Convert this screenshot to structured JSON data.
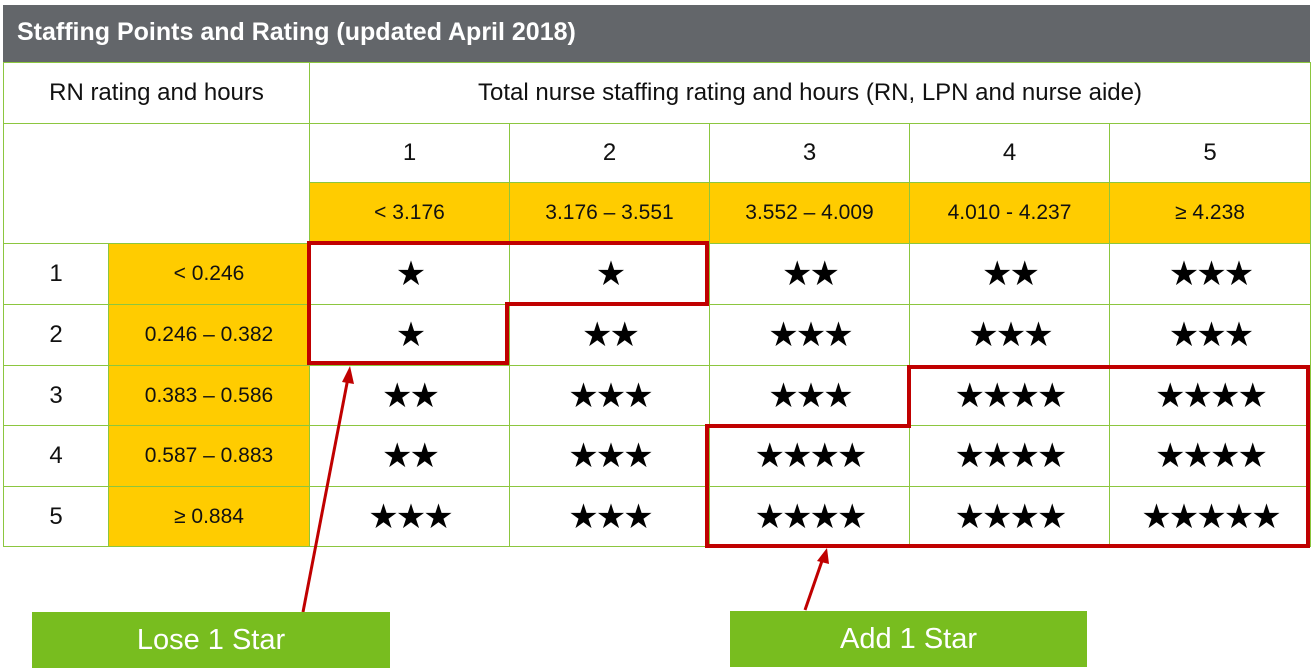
{
  "title": "Staffing Points and Rating (updated April 2018)",
  "rn_header": "RN rating and hours",
  "total_header": "Total nurse staffing rating and hours (RN, LPN and nurse aide)",
  "total_ratings": [
    "1",
    "2",
    "3",
    "4",
    "5"
  ],
  "total_ranges": [
    "< 3.176",
    "3.176 – 3.551",
    "3.552 – 4.009",
    "4.010 - 4.237",
    "≥ 4.238"
  ],
  "rn_ratings": [
    "1",
    "2",
    "3",
    "4",
    "5"
  ],
  "rn_ranges": [
    "< 0.246",
    "0.246 – 0.382",
    "0.383 – 0.586",
    "0.587 – 0.883",
    "≥ 0.884"
  ],
  "star_grid": [
    [
      1,
      1,
      2,
      2,
      3
    ],
    [
      1,
      2,
      3,
      3,
      3
    ],
    [
      2,
      3,
      3,
      4,
      4
    ],
    [
      2,
      3,
      4,
      4,
      4
    ],
    [
      3,
      3,
      4,
      4,
      5
    ]
  ],
  "star_icon": "★",
  "colors": {
    "header_bg": "#63666a",
    "range_bg": "#ffcc00",
    "grid_line": "#8cc63f",
    "outline": "#c00000",
    "callout_bg": "#78bd1f"
  },
  "callouts": {
    "lose": "Lose 1 Star",
    "add": "Add 1 Star"
  }
}
